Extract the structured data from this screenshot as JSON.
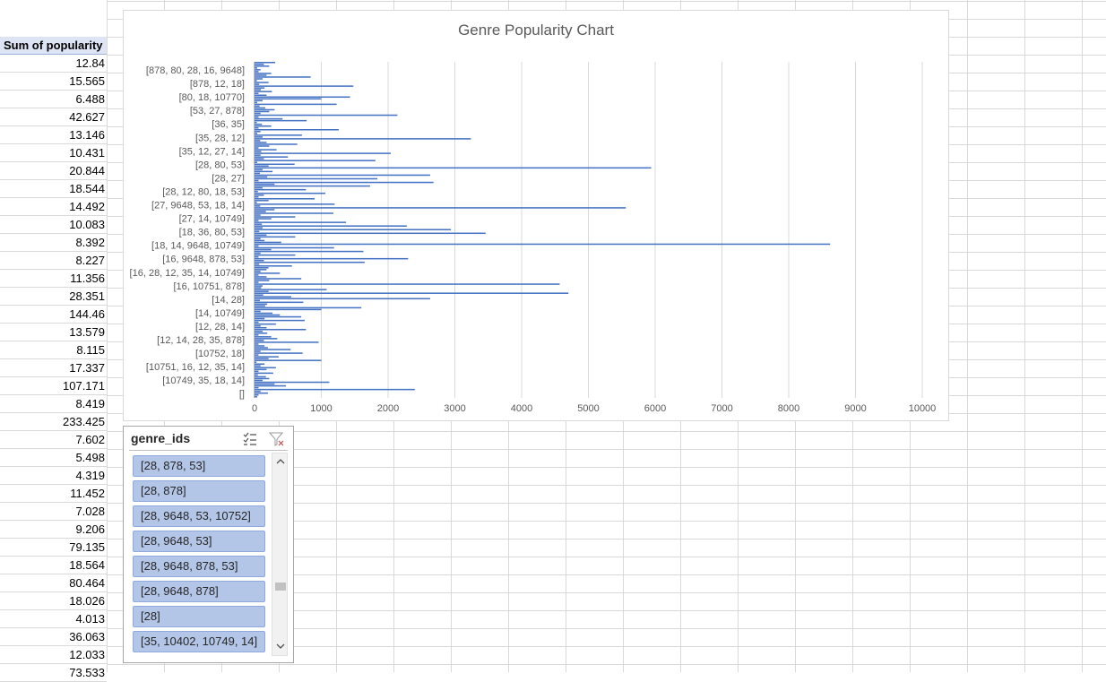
{
  "sheet": {
    "column_header": "Sum of popularity",
    "values": [
      "12.84",
      "15.565",
      "6.488",
      "42.627",
      "13.146",
      "10.431",
      "20.844",
      "18.544",
      "14.492",
      "10.083",
      "8.392",
      "8.227",
      "11.356",
      "28.351",
      "144.46",
      "13.579",
      "8.115",
      "17.337",
      "107.171",
      "8.419",
      "233.425",
      "7.602",
      "5.498",
      "4.319",
      "11.452",
      "7.028",
      "9.206",
      "79.135",
      "18.564",
      "80.464",
      "18.026",
      "4.013",
      "36.063",
      "12.033",
      "73.533"
    ]
  },
  "chart_data": {
    "type": "bar",
    "orientation": "horizontal",
    "title": "Genre Popularity Chart",
    "xlabel": "",
    "ylabel": "",
    "xlim": [
      0,
      10000
    ],
    "x_ticks": [
      "0",
      "1000",
      "2000",
      "3000",
      "4000",
      "5000",
      "6000",
      "7000",
      "8000",
      "9000",
      "10000"
    ],
    "category_labels_shown": [
      "[878, 80, 28, 16, 9648]",
      "[878, 12, 18]",
      "[80, 18, 10770]",
      "[53, 27, 878]",
      "[36, 35]",
      "[35, 28, 12]",
      "[35, 12, 27, 14]",
      "[28, 80, 53]",
      "[28, 27]",
      "[28, 12, 80, 18, 53]",
      "[27, 9648, 53, 18, 14]",
      "[27, 14, 10749]",
      "[18, 36, 80, 53]",
      "[18, 14, 9648, 10749]",
      "[16, 9648, 878, 53]",
      "[16, 28, 12, 35, 14, 10749]",
      "[16, 10751, 878]",
      "[14, 28]",
      "[14, 10749]",
      "[12, 28, 14]",
      "[12, 14, 28, 35, 878]",
      "[10752, 18]",
      "[10751, 16, 12, 35, 14]",
      "[10749, 35, 18, 14]",
      "[]"
    ],
    "values": [
      310,
      140,
      220,
      40,
      90,
      60,
      250,
      180,
      840,
      120,
      35,
      210,
      70,
      1480,
      150,
      95,
      260,
      60,
      180,
      1430,
      1000,
      120,
      40,
      1230,
      75,
      160,
      300,
      220,
      90,
      2140,
      60,
      420,
      780,
      35,
      110,
      250,
      60,
      1260,
      90,
      40,
      710,
      120,
      3240,
      85,
      180,
      640,
      220,
      60,
      330,
      100,
      2040,
      90,
      500,
      140,
      1810,
      40,
      600,
      210,
      5940,
      120,
      270,
      80,
      2630,
      190,
      1840,
      60,
      2680,
      300,
      1730,
      120,
      770,
      50,
      1060,
      140,
      60,
      900,
      210,
      35,
      1200,
      85,
      5560,
      300,
      170,
      1180,
      90,
      610,
      250,
      60,
      1370,
      110,
      2280,
      120,
      2940,
      70,
      3460,
      180,
      610,
      90,
      150,
      400,
      8620,
      60,
      1190,
      250,
      1630,
      90,
      610,
      60,
      2300,
      140,
      1650,
      70,
      560,
      210,
      180,
      90,
      380,
      60,
      180,
      700,
      220,
      60,
      4570,
      120,
      100,
      1080,
      210,
      4700,
      130,
      550,
      2630,
      80,
      730,
      190,
      160,
      1600,
      1000,
      90,
      270,
      380,
      700,
      150,
      750,
      60,
      320,
      90,
      180,
      770,
      120,
      190,
      60,
      250,
      340,
      140,
      960,
      60,
      150,
      200,
      540,
      90,
      720,
      60,
      360,
      210,
      1000,
      30,
      150,
      90,
      320,
      180,
      60,
      280,
      50,
      170,
      220,
      120,
      1120,
      300,
      470,
      60,
      2400,
      90,
      200,
      60,
      40
    ],
    "bar_color": "#4472c4",
    "grid": true,
    "legend": "none"
  },
  "slicer": {
    "field": "genre_ids",
    "items": [
      "[28, 878, 53]",
      "[28, 878]",
      "[28, 9648, 53, 10752]",
      "[28, 9648, 53]",
      "[28, 9648, 878, 53]",
      "[28, 9648, 878]",
      "[28]",
      "[35, 10402, 10749, 14]"
    ],
    "icons": [
      "multi-select-icon",
      "clear-filter-icon",
      "scroll-up-icon",
      "scroll-down-icon"
    ]
  }
}
